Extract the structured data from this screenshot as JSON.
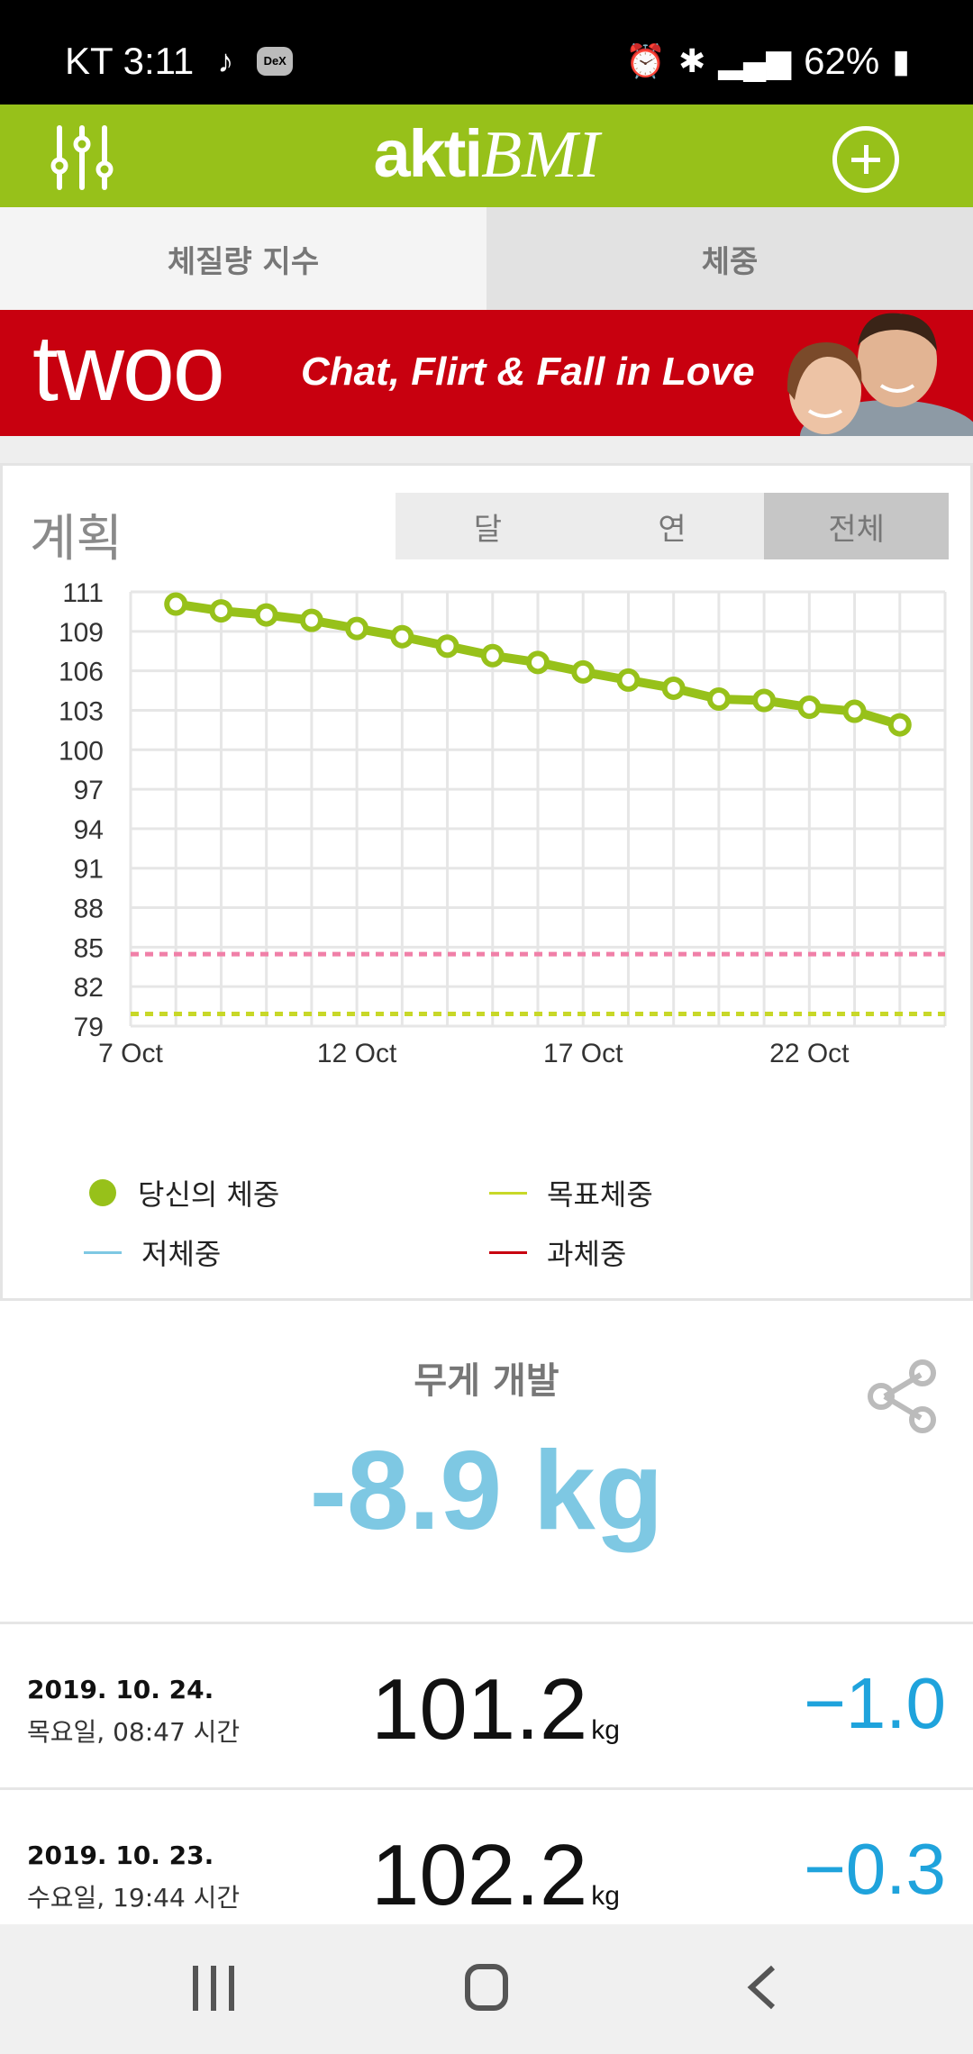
{
  "status_bar": {
    "carrier_time": "KT 3:11",
    "dex_label": "DeX",
    "battery": "62%",
    "icons": [
      "music-note-icon",
      "dex-icon",
      "alarm-icon",
      "bluetooth-icon",
      "hd-icon",
      "lte-plus-icon",
      "signal-icon",
      "battery-charging-icon"
    ]
  },
  "app_bar": {
    "title_part1": "akti",
    "title_part2": "BMI",
    "menu_icon": "sliders-icon",
    "add_icon": "plus-circle-icon"
  },
  "tabs": [
    {
      "label": "체질량 지수",
      "active": true
    },
    {
      "label": "체중",
      "active": false
    }
  ],
  "banner": {
    "logo": "twoo",
    "slogan": "Chat, Flirt & Fall in Love"
  },
  "plan": {
    "title": "계획",
    "segments": [
      {
        "label": "달",
        "selected": false
      },
      {
        "label": "연",
        "selected": false
      },
      {
        "label": "전체",
        "selected": true
      }
    ]
  },
  "chart_data": {
    "type": "line",
    "y_ticks": [
      "111",
      "109",
      "106",
      "103",
      "100",
      "97",
      "94",
      "91",
      "88",
      "85",
      "82",
      "79"
    ],
    "x_ticks": [
      "7 Oct",
      "12 Oct",
      "17 Oct",
      "22 Oct"
    ],
    "ylim": [
      79,
      111
    ],
    "x_dates": [
      "8 Oct",
      "9 Oct",
      "10 Oct",
      "11 Oct",
      "12 Oct",
      "13 Oct",
      "14 Oct",
      "15 Oct",
      "16 Oct",
      "17 Oct",
      "18 Oct",
      "19 Oct",
      "20 Oct",
      "21 Oct",
      "22 Oct",
      "23 Oct",
      "24 Oct"
    ],
    "series": [
      {
        "name": "당신의 체중",
        "color": "#97c11a",
        "values": [
          110.1,
          109.6,
          109.3,
          108.9,
          108.3,
          107.7,
          107.0,
          106.3,
          105.8,
          105.1,
          104.5,
          103.9,
          103.1,
          103.0,
          102.5,
          102.2,
          101.2
        ]
      }
    ],
    "reference_lines": [
      {
        "name": "과체중",
        "value": 84.3,
        "color": "#f080a8",
        "style": "dotted"
      },
      {
        "name": "목표체중",
        "value": 79.9,
        "color": "#c8d828",
        "style": "dotted"
      }
    ],
    "grid": true
  },
  "legend": [
    {
      "label": "당신의 체중",
      "kind": "dot",
      "color": "#97c11a"
    },
    {
      "label": "목표체중",
      "kind": "line",
      "color": "#c8d828"
    },
    {
      "label": "저체중",
      "kind": "line",
      "color": "#7ec8e3"
    },
    {
      "label": "과체중",
      "kind": "line",
      "color": "#c8000f"
    }
  ],
  "weight_development": {
    "label": "무게 개발",
    "value": "-8.9 kg",
    "share_icon": "share-icon"
  },
  "entries": [
    {
      "date": "2019. 10. 24.",
      "sub": "목요일, 08:47 시간",
      "weight": "101.2",
      "unit": "kg",
      "diff": "−1.0"
    },
    {
      "date": "2019. 10. 23.",
      "sub": "수요일, 19:44 시간",
      "weight": "102.2",
      "unit": "kg",
      "diff": "−0.3"
    }
  ],
  "nav_bar": {
    "icons": [
      "recent-apps-icon",
      "home-icon",
      "back-icon"
    ]
  }
}
